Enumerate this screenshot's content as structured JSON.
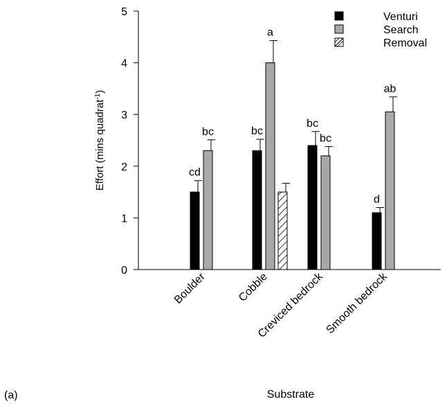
{
  "panel_label": "(a)",
  "chart_data": {
    "type": "bar",
    "xlabel": "Substrate",
    "ylabel": "Effort (mins quadrat",
    "ylabel_superscript": "-1",
    "ylabel_suffix": ")",
    "ylim": [
      0,
      5
    ],
    "yticks": [
      0,
      1,
      2,
      3,
      4,
      5
    ],
    "grid": false,
    "legend_position": "top-right",
    "categories": [
      "Boulder",
      "Cobble",
      "Creviced bedrock",
      "Smooth bedrock"
    ],
    "series": [
      {
        "name": "Venturi",
        "style": "solid",
        "color": "#000000",
        "values": [
          1.5,
          2.3,
          2.4,
          1.1
        ],
        "errors": [
          0.22,
          0.22,
          0.27,
          0.1
        ],
        "labels": [
          "cd",
          "bc",
          "bc",
          "d"
        ]
      },
      {
        "name": "Search",
        "style": "solid",
        "color": "#a8a8a8",
        "values": [
          2.3,
          4.0,
          2.2,
          3.05
        ],
        "errors": [
          0.21,
          0.43,
          0.18,
          0.29
        ],
        "labels": [
          "bc",
          "a",
          "bc",
          "ab"
        ]
      },
      {
        "name": "Removal",
        "style": "hatched",
        "color": "#ffffff",
        "values": [
          null,
          1.5,
          null,
          null
        ],
        "errors": [
          null,
          0.17,
          null,
          null
        ],
        "labels": [
          null,
          null,
          null,
          null
        ]
      }
    ]
  }
}
